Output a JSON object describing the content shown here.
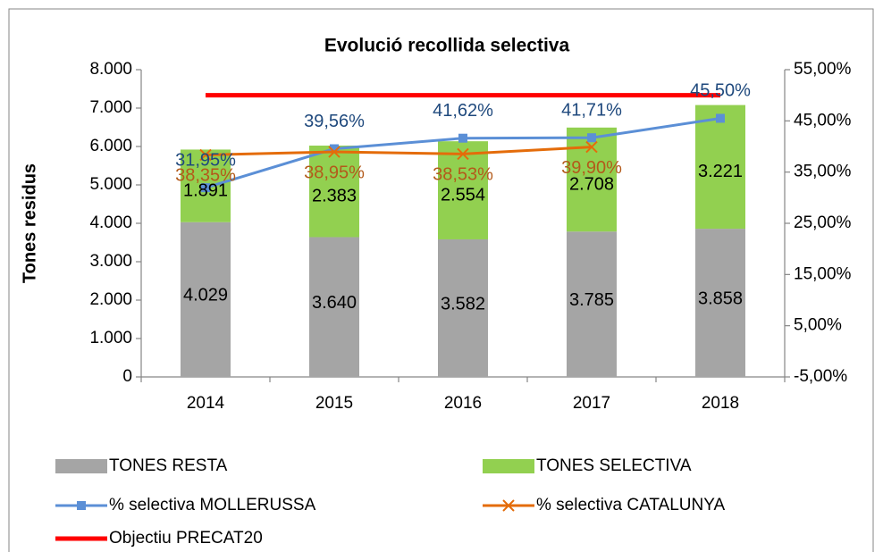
{
  "chart_data": {
    "type": "bar-line",
    "title": "Evolució recollida selectiva",
    "y_label": "Tones residus",
    "categories": [
      "2014",
      "2015",
      "2016",
      "2017",
      "2018"
    ],
    "ylim": [
      0,
      8000
    ],
    "yticks": [
      {
        "value": 0,
        "label": "0"
      },
      {
        "value": 1000,
        "label": "1.000"
      },
      {
        "value": 2000,
        "label": "2.000"
      },
      {
        "value": 3000,
        "label": "3.000"
      },
      {
        "value": 4000,
        "label": "4.000"
      },
      {
        "value": 5000,
        "label": "5.000"
      },
      {
        "value": 6000,
        "label": "6.000"
      },
      {
        "value": 7000,
        "label": "7.000"
      },
      {
        "value": 8000,
        "label": "8.000"
      }
    ],
    "y2lim": [
      -5,
      55
    ],
    "y2ticks": [
      {
        "value": -5,
        "label": "-5,00%"
      },
      {
        "value": 5,
        "label": "5,00%"
      },
      {
        "value": 15,
        "label": "15,00%"
      },
      {
        "value": 25,
        "label": "25,00%"
      },
      {
        "value": 35,
        "label": "35,00%"
      },
      {
        "value": 45,
        "label": "45,00%"
      },
      {
        "value": 55,
        "label": "55,00%"
      }
    ],
    "series": [
      {
        "name": "TONES RESTA",
        "kind": "bar",
        "color": "#a5a5a5",
        "values": [
          4029,
          3640,
          3582,
          3785,
          3858
        ],
        "value_labels": [
          "4.029",
          "3.640",
          "3.582",
          "3.785",
          "3.858"
        ]
      },
      {
        "name": "TONES SELECTIVA",
        "kind": "bar",
        "color": "#92d050",
        "values": [
          1891,
          2383,
          2554,
          2708,
          3221
        ],
        "value_labels": [
          "1.891",
          "2.383",
          "2.554",
          "2.708",
          "3.221"
        ]
      },
      {
        "name": "% selectiva MOLLERUSSA",
        "kind": "line",
        "axis": "y2",
        "color": "#5b8fd6",
        "marker": "square",
        "label_color": "#1f497d",
        "values": [
          31.95,
          39.56,
          41.62,
          41.71,
          45.5
        ],
        "value_labels": [
          "31,95%",
          "39,56%",
          "41,62%",
          "41,71%",
          "45,50%"
        ]
      },
      {
        "name": "% selectiva CATALUNYA",
        "kind": "line",
        "axis": "y2",
        "color": "#e46c0a",
        "marker": "x",
        "label_color": "#b35a1a",
        "values": [
          38.35,
          38.95,
          38.53,
          39.9,
          null
        ],
        "value_labels": [
          "38,35%",
          "38,95%",
          "38,53%",
          "39,90%",
          null
        ]
      },
      {
        "name": "Objectiu PRECAT20",
        "kind": "line",
        "axis": "y2",
        "color": "#ff0000",
        "marker": "none",
        "values": [
          50,
          50,
          50,
          50,
          50
        ]
      }
    ],
    "grid": false
  }
}
